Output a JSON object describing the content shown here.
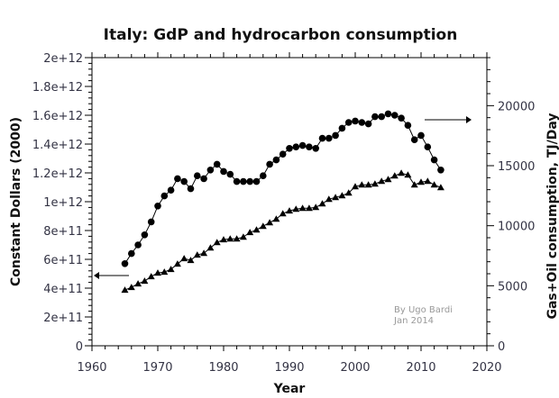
{
  "chart_data": {
    "type": "line",
    "title": "Italy: GdP and hydrocarbon consumption",
    "xlabel": "Year",
    "ylabel": "Constant Dollars (2000)",
    "y2label": "Gas+Oil consumption, TJ/Day",
    "xlim": [
      1960,
      2020
    ],
    "ylim": [
      0,
      2000000000000.0
    ],
    "y2lim": [
      0,
      24000
    ],
    "grid": false,
    "x_ticks": [
      "1960",
      "1970",
      "1980",
      "1990",
      "2000",
      "2010",
      "2020"
    ],
    "y_ticks": [
      "0",
      "2e+11",
      "4e+11",
      "6e+11",
      "8e+11",
      "1e+12",
      "1.2e+12",
      "1.4e+12",
      "1.6e+12",
      "1.8e+12",
      "2e+12"
    ],
    "y2_ticks": [
      "0",
      "5000",
      "10000",
      "15000",
      "20000"
    ],
    "annotation": [
      "By Ugo Bardi",
      "Jan 2014"
    ],
    "arrows": [
      {
        "series": "GDP",
        "direction": "left",
        "points_to": "left-axis"
      },
      {
        "series": "Gas+Oil consumption",
        "direction": "right",
        "points_to": "right-axis"
      }
    ],
    "x": [
      1965,
      1966,
      1967,
      1968,
      1969,
      1970,
      1971,
      1972,
      1973,
      1974,
      1975,
      1976,
      1977,
      1978,
      1979,
      1980,
      1981,
      1982,
      1983,
      1984,
      1985,
      1986,
      1987,
      1988,
      1989,
      1990,
      1991,
      1992,
      1993,
      1994,
      1995,
      1996,
      1997,
      1998,
      1999,
      2000,
      2001,
      2002,
      2003,
      2004,
      2005,
      2006,
      2007,
      2008,
      2009,
      2010,
      2011,
      2012,
      2013
    ],
    "series": [
      {
        "name": "GDP",
        "axis": "left",
        "marker": "circle",
        "values": [
          570000000000.0,
          640000000000.0,
          700000000000.0,
          770000000000.0,
          860000000000.0,
          970000000000.0,
          1040000000000.0,
          1080000000000.0,
          1160000000000.0,
          1140000000000.0,
          1090000000000.0,
          1180000000000.0,
          1160000000000.0,
          1220000000000.0,
          1260000000000.0,
          1210000000000.0,
          1190000000000.0,
          1140000000000.0,
          1140000000000.0,
          1140000000000.0,
          1140000000000.0,
          1180000000000.0,
          1260000000000.0,
          1290000000000.0,
          1330000000000.0,
          1370000000000.0,
          1380000000000.0,
          1390000000000.0,
          1380000000000.0,
          1370000000000.0,
          1440000000000.0,
          1440000000000.0,
          1460000000000.0,
          1510000000000.0,
          1550000000000.0,
          1560000000000.0,
          1550000000000.0,
          1540000000000.0,
          1590000000000.0,
          1590000000000.0,
          1610000000000.0,
          1600000000000.0,
          1580000000000.0,
          1530000000000.0,
          1430000000000.0,
          1460000000000.0,
          1380000000000.0,
          1290000000000.0,
          1220000000000.0
        ]
      },
      {
        "name": "Gas+Oil consumption",
        "axis": "right",
        "marker": "triangle",
        "values": [
          4640,
          4870,
          5170,
          5390,
          5770,
          6070,
          6140,
          6370,
          6820,
          7270,
          7120,
          7570,
          7710,
          8160,
          8610,
          8840,
          8910,
          8910,
          9060,
          9440,
          9660,
          9960,
          10260,
          10560,
          11010,
          11240,
          11380,
          11460,
          11460,
          11530,
          11830,
          12210,
          12360,
          12510,
          12730,
          13260,
          13410,
          13410,
          13480,
          13710,
          13860,
          14160,
          14380,
          14230,
          13410,
          13630,
          13710,
          13410,
          13180
        ]
      }
    ]
  }
}
